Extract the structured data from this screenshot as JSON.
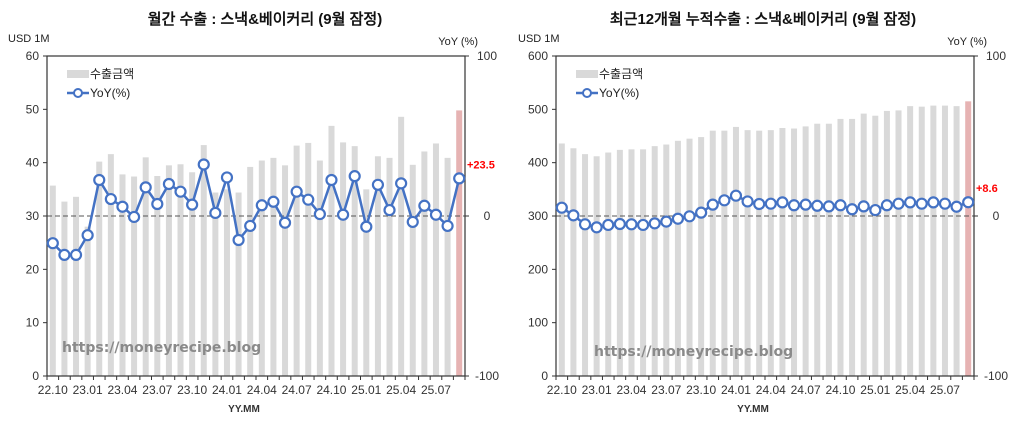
{
  "colors": {
    "bar": "#d9d9d9",
    "bar_latest": "#e6b3b3",
    "line": "#4472c4",
    "latest_label": "#ff0000"
  },
  "chart_data": [
    {
      "type": "bar",
      "title": "월간 수출 : 스낵&베이커리 (9월 잠정)",
      "ylabel": "USD 1M",
      "y2label": "YoY (%)",
      "xlabel": "YY.MM",
      "ylim": [
        0,
        60
      ],
      "yticks": [
        0,
        10,
        20,
        30,
        40,
        50,
        60
      ],
      "y2lim": [
        -100,
        100
      ],
      "y2ticks": [
        -100,
        0,
        100
      ],
      "legend": [
        "수출금액",
        "YoY(%)"
      ],
      "legend_position": "top-left",
      "watermark": "https://moneyrecipe.blog",
      "xtick_labels": [
        "22.10",
        "23.01",
        "23.04",
        "23.07",
        "23.10",
        "24.01",
        "24.04",
        "24.07",
        "24.10",
        "25.01",
        "25.04",
        "25.07"
      ],
      "latest_label": "+23.5",
      "series": [
        {
          "name": "수출금액",
          "axis": "left",
          "values": [
            35.7,
            32.7,
            33.6,
            28.0,
            40.2,
            41.6,
            37.8,
            37.4,
            41.0,
            37.5,
            39.5,
            39.7,
            38.2,
            43.3,
            34.4,
            35.0,
            34.4,
            39.2,
            40.4,
            40.9,
            39.5,
            43.2,
            43.7,
            40.4,
            46.9,
            43.8,
            43.1,
            35.0,
            41.2,
            40.9,
            48.6,
            39.6,
            42.1,
            43.6,
            40.9,
            49.8
          ]
        },
        {
          "name": "YoY(%)",
          "axis": "right",
          "values": [
            -17.0,
            -24.3,
            -24.3,
            -12.0,
            22.5,
            10.6,
            5.8,
            -0.6,
            17.9,
            7.5,
            20.0,
            15.2,
            7.1,
            32.2,
            1.9,
            24.1,
            -15.0,
            -6.2,
            6.7,
            8.9,
            -4.2,
            15.2,
            10.2,
            1.2,
            22.5,
            0.8,
            24.9,
            -6.7,
            19.5,
            3.7,
            20.4,
            -3.7,
            6.4,
            0.8,
            -6.2,
            23.5
          ]
        }
      ]
    },
    {
      "type": "bar",
      "title": "최근12개월 누적수출 : 스낵&베이커리 (9월 잠정)",
      "ylabel": "USD 1M",
      "y2label": "YoY (%)",
      "xlabel": "YY.MM",
      "ylim": [
        0,
        600
      ],
      "yticks": [
        0,
        100,
        200,
        300,
        400,
        500,
        600
      ],
      "y2lim": [
        -100,
        100
      ],
      "y2ticks": [
        -100,
        0,
        100
      ],
      "legend": [
        "수출금액",
        "YoY(%)"
      ],
      "legend_position": "top-left",
      "watermark": "https://moneyrecipe.blog",
      "xtick_labels": [
        "22.10",
        "23.01",
        "23.04",
        "23.07",
        "23.10",
        "24.01",
        "24.04",
        "24.07",
        "24.10",
        "25.01",
        "25.04",
        "25.07"
      ],
      "latest_label": "+8.6",
      "series": [
        {
          "name": "수출금액",
          "axis": "left",
          "values": [
            436,
            427,
            416,
            412,
            419,
            424,
            425,
            425,
            431,
            434,
            441,
            445,
            448,
            460,
            460,
            467,
            461,
            460,
            461,
            465,
            464,
            468,
            473,
            473,
            482,
            482,
            492,
            488,
            497,
            498,
            506,
            505,
            507,
            507,
            506,
            515
          ]
        },
        {
          "name": "YoY(%)",
          "axis": "right",
          "values": [
            5.2,
            0.4,
            -5.2,
            -7.1,
            -5.6,
            -5.0,
            -5.2,
            -5.6,
            -4.6,
            -3.5,
            -1.7,
            -0.2,
            2.1,
            7.1,
            9.8,
            12.7,
            9.1,
            7.5,
            7.7,
            8.5,
            6.7,
            7.1,
            6.4,
            6.0,
            6.7,
            4.2,
            6.0,
            3.7,
            6.7,
            7.7,
            8.5,
            7.7,
            8.5,
            7.7,
            5.8,
            8.6
          ]
        }
      ]
    }
  ]
}
